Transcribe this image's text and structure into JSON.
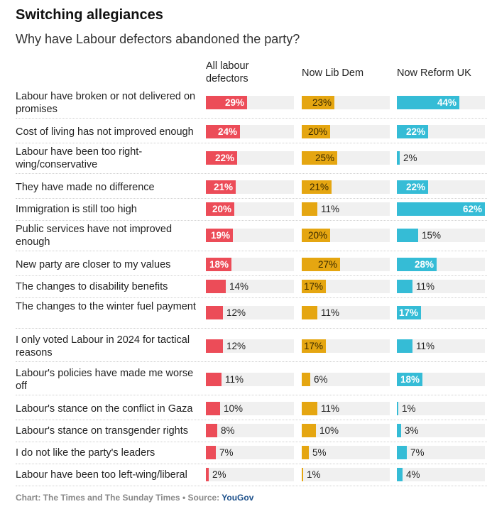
{
  "header": {
    "title": "Switching allegiances",
    "subtitle": "Why have Labour defectors abandoned the party?"
  },
  "colors": {
    "all_labour": "#ec4c58",
    "lib_dem": "#e5a611",
    "reform": "#35bcd6",
    "track": "#f0f0f0"
  },
  "footer": {
    "credit": "Chart: The Times and The Sunday Times • Source: ",
    "source": "YouGov"
  },
  "chart_data": {
    "type": "bar",
    "title": "Switching allegiances",
    "subtitle": "Why have Labour defectors abandoned the party?",
    "unit": "%",
    "xlim": [
      0,
      62
    ],
    "series": [
      {
        "name": "All labour defectors",
        "color": "#ec4c58"
      },
      {
        "name": "Now Lib Dem",
        "color": "#e5a611"
      },
      {
        "name": "Now Reform UK",
        "color": "#35bcd6"
      }
    ],
    "rows": [
      {
        "label": "Labour have broken or not delivered on promises",
        "values": [
          29,
          23,
          44
        ]
      },
      {
        "label": "Cost of living has not improved enough",
        "values": [
          24,
          20,
          22
        ]
      },
      {
        "label": "Labour have been too right-wing/conservative",
        "values": [
          22,
          25,
          2
        ]
      },
      {
        "label": "They have made no difference",
        "values": [
          21,
          21,
          22
        ]
      },
      {
        "label": "Immigration is still too high",
        "values": [
          20,
          11,
          62
        ]
      },
      {
        "label": "Public services have not improved enough",
        "values": [
          19,
          20,
          15
        ]
      },
      {
        "label": "New party are closer to my values",
        "values": [
          18,
          27,
          28
        ]
      },
      {
        "label": "The changes to disability benefits",
        "values": [
          14,
          17,
          11
        ]
      },
      {
        "label": "The changes to the winter fuel payment",
        "values": [
          12,
          11,
          17
        ]
      },
      {
        "label": "I only voted Labour in 2024 for tactical reasons",
        "values": [
          12,
          17,
          11
        ]
      },
      {
        "label": "Labour's policies have made me worse off",
        "values": [
          11,
          6,
          18
        ]
      },
      {
        "label": "Labour's stance on the conflict in Gaza",
        "values": [
          10,
          11,
          1
        ]
      },
      {
        "label": "Labour's stance on transgender rights",
        "values": [
          8,
          10,
          3
        ]
      },
      {
        "label": "I do not like the party's leaders",
        "values": [
          7,
          5,
          7
        ]
      },
      {
        "label": "Labour have been too left-wing/liberal",
        "values": [
          2,
          1,
          4
        ]
      }
    ]
  }
}
